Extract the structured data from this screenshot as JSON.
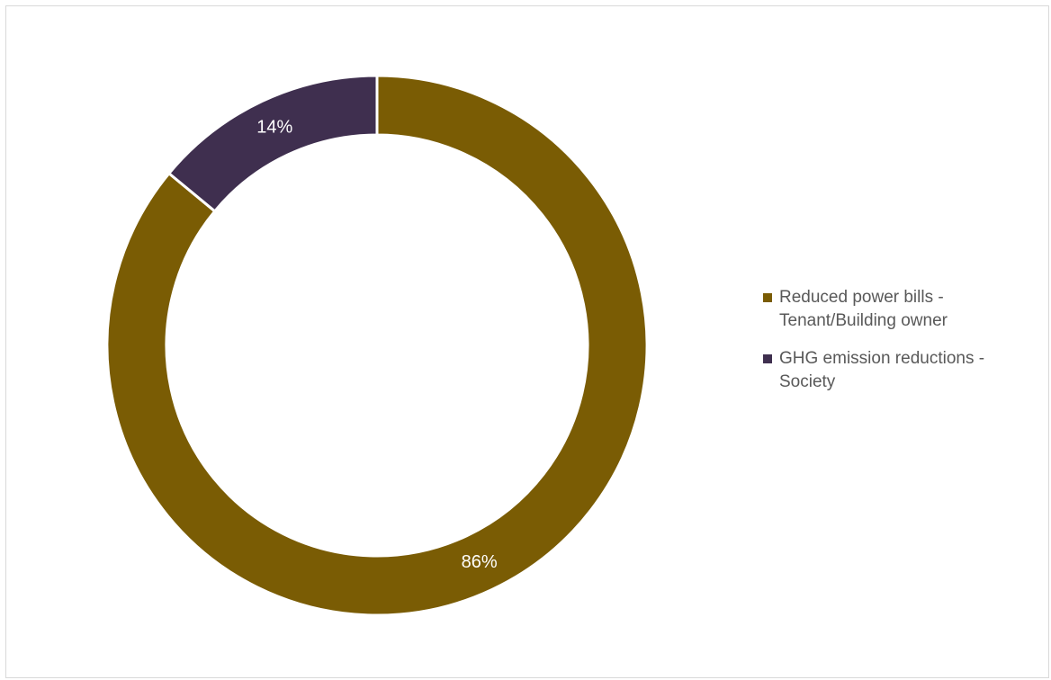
{
  "chart_data": {
    "type": "pie",
    "variant": "donut",
    "categories": [
      "Reduced power bills - Tenant/Building owner",
      "GHG emission reductions - Society"
    ],
    "values": [
      86,
      14
    ],
    "data_labels": [
      "86%",
      "14%"
    ],
    "colors": [
      "#7a5c04",
      "#3f2f4f"
    ],
    "legend_placement": "right",
    "title": ""
  },
  "legend": {
    "items": [
      {
        "label": "Reduced power bills - Tenant/Building owner",
        "color": "#7a5c04"
      },
      {
        "label": "GHG emission reductions - Society",
        "color": "#3f2f4f"
      }
    ]
  }
}
